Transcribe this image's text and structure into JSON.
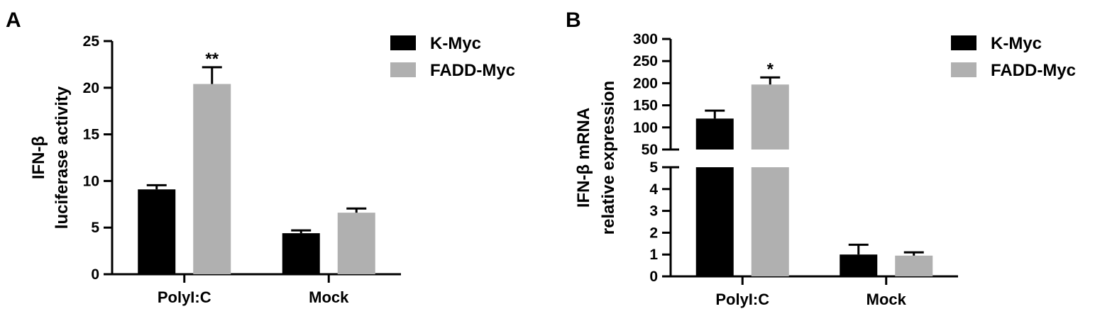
{
  "chart_data": [
    {
      "type": "bar",
      "panel": "A",
      "ylabel": [
        "IFN-β",
        "luciferase activity"
      ],
      "categories": [
        "PolyI:C",
        "Mock"
      ],
      "series": [
        {
          "name": "K-Myc",
          "color": "#000000",
          "values": [
            9.1,
            4.4
          ],
          "errors": [
            0.45,
            0.3
          ]
        },
        {
          "name": "FADD-Myc",
          "color": "#b0b0b0",
          "values": [
            20.4,
            6.6
          ],
          "errors": [
            1.8,
            0.45
          ]
        }
      ],
      "annotations": [
        {
          "series": 1,
          "category": 0,
          "text": "**"
        }
      ],
      "ylim_segments": [
        [
          0,
          25
        ]
      ],
      "yticks": [
        0,
        5,
        10,
        15,
        20,
        25
      ],
      "legend": "upper right"
    },
    {
      "type": "bar",
      "panel": "B",
      "ylabel": [
        "IFN-β mRNA",
        "relative expression"
      ],
      "categories": [
        "PolyI:C",
        "Mock"
      ],
      "series": [
        {
          "name": "K-Myc",
          "color": "#000000",
          "values": [
            120,
            1.0
          ],
          "errors": [
            18,
            0.45
          ]
        },
        {
          "name": "FADD-Myc",
          "color": "#b0b0b0",
          "values": [
            197,
            0.95
          ],
          "errors": [
            16,
            0.15
          ]
        }
      ],
      "annotations": [
        {
          "series": 1,
          "category": 0,
          "text": "*"
        }
      ],
      "ylim_segments": [
        [
          0,
          5
        ],
        [
          50,
          300
        ]
      ],
      "yticks": [
        0,
        1,
        2,
        3,
        4,
        5,
        50,
        100,
        150,
        200,
        250,
        300
      ],
      "legend": "upper right"
    }
  ]
}
